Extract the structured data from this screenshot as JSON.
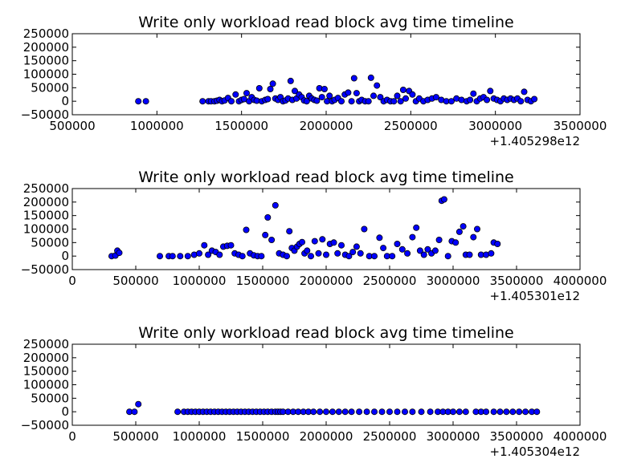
{
  "chart_data": [
    {
      "type": "scatter",
      "title": "Write only workload read block avg time timeline",
      "xlabel": "",
      "ylabel": "",
      "x_offset_label": "+1.405298e12",
      "xlim": [
        500000,
        3500000
      ],
      "ylim": [
        -50000,
        250000
      ],
      "xticks": [
        "500000",
        "1000000",
        "1500000",
        "2000000",
        "2500000",
        "3000000",
        "3500000"
      ],
      "yticks": [
        "250000",
        "200000",
        "150000",
        "100000",
        "50000",
        "0",
        "−50000"
      ],
      "marker_color": "#0000ff",
      "x": [
        890000,
        935000,
        1270000,
        1305000,
        1320000,
        1340000,
        1355000,
        1370000,
        1385000,
        1400000,
        1420000,
        1440000,
        1465000,
        1485000,
        1500000,
        1515000,
        1530000,
        1545000,
        1560000,
        1575000,
        1590000,
        1605000,
        1620000,
        1640000,
        1655000,
        1670000,
        1685000,
        1700000,
        1715000,
        1730000,
        1745000,
        1760000,
        1775000,
        1790000,
        1800000,
        1815000,
        1825000,
        1840000,
        1855000,
        1870000,
        1885000,
        1900000,
        1915000,
        1930000,
        1945000,
        1960000,
        1975000,
        1990000,
        2005000,
        2020000,
        2035000,
        2050000,
        2070000,
        2090000,
        2110000,
        2130000,
        2150000,
        2165000,
        2180000,
        2195000,
        2210000,
        2230000,
        2250000,
        2265000,
        2280000,
        2300000,
        2320000,
        2340000,
        2360000,
        2380000,
        2400000,
        2420000,
        2440000,
        2455000,
        2470000,
        2490000,
        2510000,
        2530000,
        2550000,
        2575000,
        2600000,
        2625000,
        2650000,
        2680000,
        2710000,
        2740000,
        2770000,
        2800000,
        2830000,
        2850000,
        2870000,
        2890000,
        2910000,
        2930000,
        2950000,
        2970000,
        2990000,
        3010000,
        3030000,
        3050000,
        3070000,
        3090000,
        3110000,
        3130000,
        3150000,
        3170000,
        3190000,
        3210000,
        3230000
      ],
      "y": [
        0,
        0,
        0,
        0,
        0,
        0,
        2000,
        5000,
        0,
        3000,
        12000,
        0,
        25000,
        0,
        5000,
        8000,
        30000,
        0,
        15000,
        5000,
        2000,
        48000,
        0,
        5000,
        8000,
        45000,
        65000,
        10000,
        5000,
        15000,
        0,
        3000,
        10000,
        75000,
        5000,
        38000,
        10000,
        25000,
        15000,
        3000,
        0,
        20000,
        10000,
        5000,
        2000,
        48000,
        15000,
        45000,
        0,
        20000,
        0,
        5000,
        12000,
        0,
        25000,
        32000,
        0,
        85000,
        30000,
        0,
        5000,
        0,
        0,
        87000,
        20000,
        58000,
        15000,
        0,
        5000,
        0,
        0,
        20000,
        0,
        42000,
        10000,
        38000,
        25000,
        0,
        10000,
        0,
        5000,
        10000,
        15000,
        5000,
        0,
        0,
        10000,
        5000,
        0,
        5000,
        28000,
        0,
        10000,
        15000,
        5000,
        38000,
        10000,
        5000,
        0,
        10000,
        5000,
        10000,
        5000,
        10000,
        0,
        35000,
        5000,
        0,
        8000
      ]
    },
    {
      "type": "scatter",
      "title": "Write only workload read block avg time timeline",
      "xlabel": "",
      "ylabel": "",
      "x_offset_label": "+1.405301e12",
      "xlim": [
        0,
        4000000
      ],
      "ylim": [
        -50000,
        250000
      ],
      "xticks": [
        "0",
        "500000",
        "1000000",
        "1500000",
        "2000000",
        "2500000",
        "3000000",
        "3500000",
        "4000000"
      ],
      "yticks": [
        "250000",
        "200000",
        "150000",
        "100000",
        "50000",
        "0",
        "−50000"
      ],
      "marker_color": "#0000ff",
      "x": [
        310000,
        340000,
        355000,
        370000,
        690000,
        760000,
        790000,
        850000,
        910000,
        960000,
        1000000,
        1040000,
        1070000,
        1100000,
        1130000,
        1160000,
        1190000,
        1220000,
        1250000,
        1280000,
        1310000,
        1340000,
        1370000,
        1400000,
        1430000,
        1460000,
        1490000,
        1520000,
        1540000,
        1570000,
        1600000,
        1630000,
        1660000,
        1690000,
        1710000,
        1730000,
        1750000,
        1770000,
        1790000,
        1810000,
        1830000,
        1850000,
        1880000,
        1910000,
        1940000,
        1970000,
        2000000,
        2030000,
        2060000,
        2090000,
        2120000,
        2150000,
        2180000,
        2210000,
        2240000,
        2270000,
        2300000,
        2340000,
        2380000,
        2420000,
        2450000,
        2480000,
        2520000,
        2560000,
        2600000,
        2640000,
        2680000,
        2710000,
        2740000,
        2770000,
        2800000,
        2830000,
        2860000,
        2890000,
        2910000,
        2930000,
        2960000,
        2990000,
        3020000,
        3050000,
        3080000,
        3100000,
        3130000,
        3160000,
        3190000,
        3220000,
        3260000,
        3300000,
        3320000,
        3350000
      ],
      "y": [
        0,
        2000,
        20000,
        12000,
        0,
        0,
        0,
        0,
        0,
        5000,
        10000,
        40000,
        5000,
        20000,
        15000,
        5000,
        35000,
        38000,
        40000,
        10000,
        5000,
        0,
        97000,
        10000,
        3000,
        0,
        0,
        78000,
        143000,
        60000,
        188000,
        10000,
        5000,
        0,
        92000,
        30000,
        20000,
        35000,
        45000,
        52000,
        10000,
        20000,
        0,
        55000,
        10000,
        62000,
        5000,
        45000,
        50000,
        10000,
        40000,
        5000,
        0,
        15000,
        35000,
        10000,
        100000,
        0,
        0,
        68000,
        30000,
        0,
        0,
        45000,
        25000,
        10000,
        70000,
        105000,
        20000,
        5000,
        25000,
        10000,
        20000,
        60000,
        205000,
        210000,
        0,
        55000,
        50000,
        90000,
        110000,
        5000,
        5000,
        70000,
        100000,
        5000,
        5000,
        10000,
        50000,
        45000
      ],
      "y_extra_note": ""
    },
    {
      "type": "scatter",
      "title": "Write only workload read block avg time timeline",
      "xlabel": "",
      "ylabel": "",
      "x_offset_label": "+1.405304e12",
      "xlim": [
        0,
        4000000
      ],
      "ylim": [
        -50000,
        250000
      ],
      "xticks": [
        "0",
        "500000",
        "1000000",
        "1500000",
        "2000000",
        "2500000",
        "3000000",
        "3500000",
        "4000000"
      ],
      "yticks": [
        "250000",
        "200000",
        "150000",
        "100000",
        "50000",
        "0",
        "−50000"
      ],
      "marker_color": "#0000ff",
      "x": [
        450000,
        490000,
        520000,
        830000,
        880000,
        910000,
        940000,
        970000,
        1000000,
        1030000,
        1060000,
        1090000,
        1120000,
        1150000,
        1180000,
        1210000,
        1240000,
        1270000,
        1300000,
        1330000,
        1360000,
        1390000,
        1420000,
        1450000,
        1480000,
        1510000,
        1540000,
        1570000,
        1600000,
        1620000,
        1640000,
        1660000,
        1700000,
        1740000,
        1780000,
        1820000,
        1860000,
        1900000,
        1950000,
        2000000,
        2050000,
        2100000,
        2150000,
        2200000,
        2260000,
        2320000,
        2380000,
        2440000,
        2500000,
        2560000,
        2620000,
        2680000,
        2750000,
        2820000,
        2880000,
        2920000,
        2960000,
        3000000,
        3050000,
        3100000,
        3180000,
        3220000,
        3260000,
        3320000,
        3370000,
        3420000,
        3470000,
        3520000,
        3570000,
        3620000,
        3660000
      ],
      "y": [
        0,
        0,
        28000,
        0,
        0,
        0,
        0,
        0,
        0,
        0,
        0,
        0,
        0,
        0,
        0,
        0,
        0,
        0,
        0,
        0,
        0,
        0,
        0,
        0,
        0,
        0,
        0,
        0,
        0,
        0,
        0,
        0,
        0,
        0,
        0,
        0,
        0,
        0,
        0,
        0,
        0,
        0,
        0,
        0,
        0,
        0,
        0,
        0,
        0,
        0,
        0,
        0,
        0,
        0,
        0,
        0,
        0,
        0,
        0,
        0,
        0,
        0,
        0,
        0,
        0,
        0,
        0,
        0,
        0,
        0,
        0
      ]
    }
  ]
}
